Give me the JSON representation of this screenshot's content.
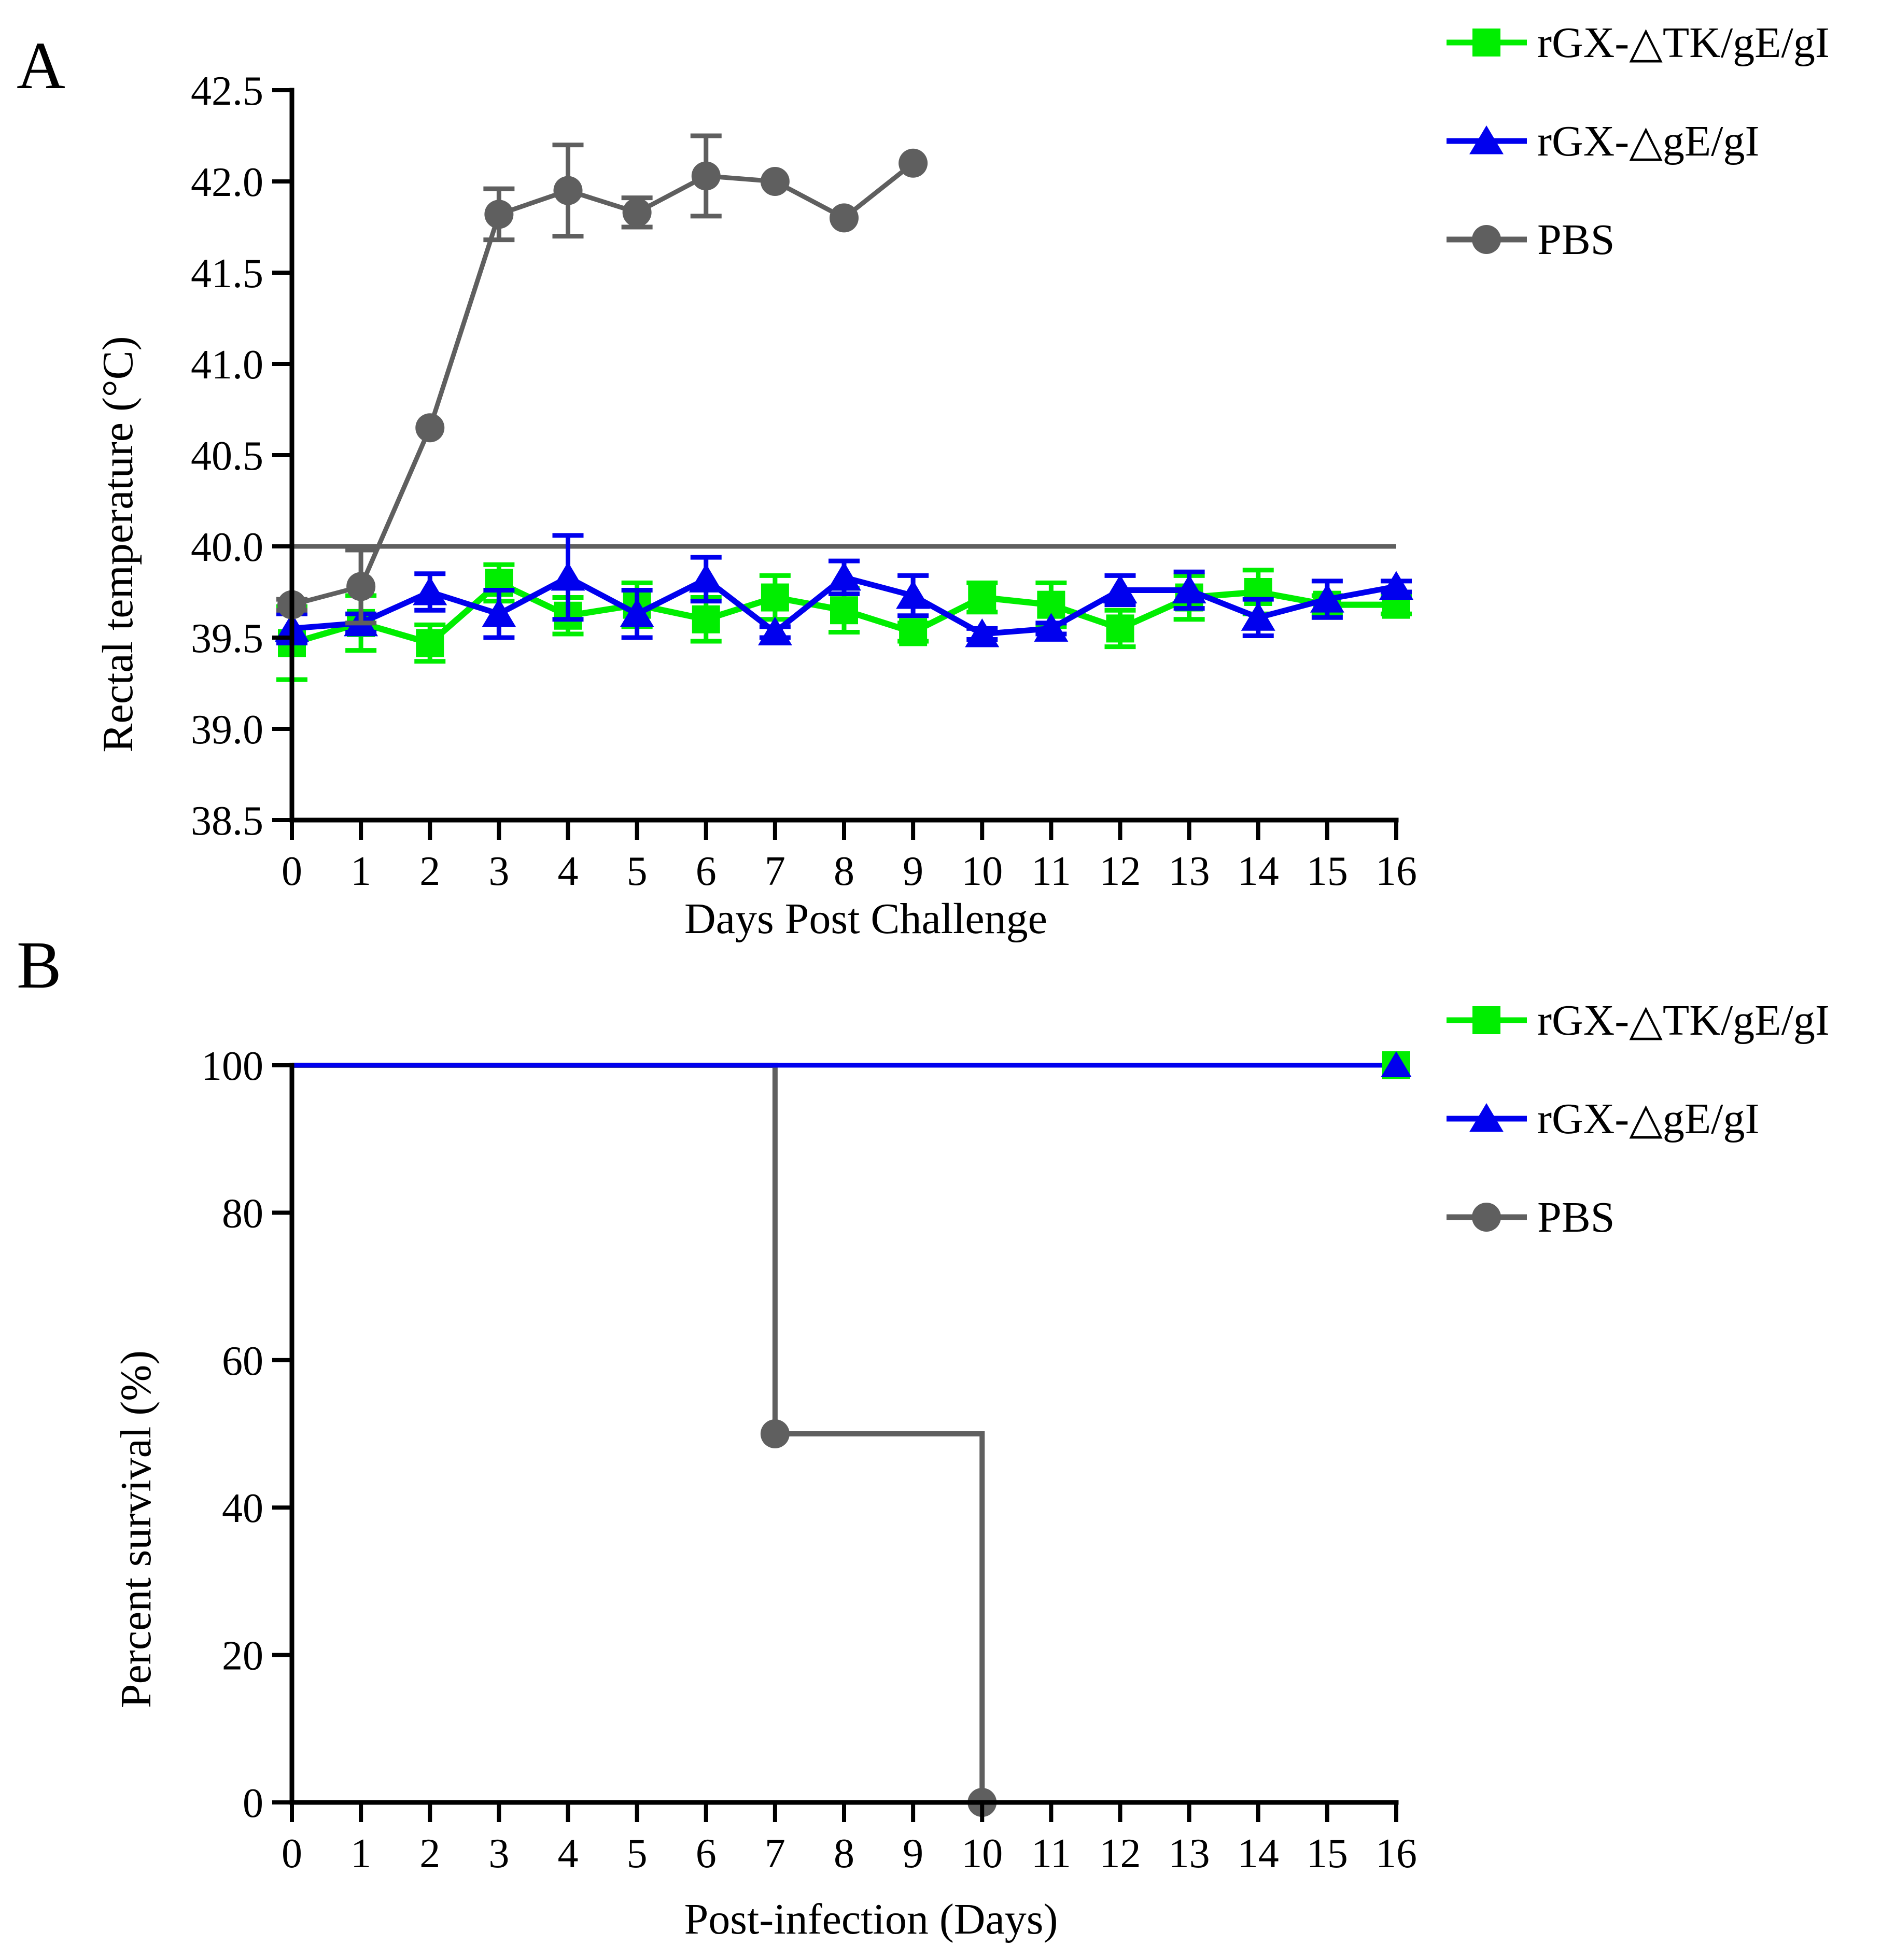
{
  "chart_data": [
    {
      "type": "line",
      "panel_label": "A",
      "xlabel": "Days Post Challenge",
      "ylabel": "Rectal temperature (°C)",
      "xlim": [
        0,
        16
      ],
      "ylim": [
        38.5,
        42.5
      ],
      "x_ticks": [
        "0",
        "1",
        "2",
        "3",
        "4",
        "5",
        "6",
        "7",
        "8",
        "9",
        "10",
        "11",
        "12",
        "13",
        "14",
        "15",
        "16"
      ],
      "y_ticks": [
        "38.5",
        "39.0",
        "39.5",
        "40.0",
        "40.5",
        "41.0",
        "41.5",
        "42.0",
        "42.5"
      ],
      "threshold": 40.0,
      "series": [
        {
          "name": "rGX-△TK/gE/gI",
          "color": "#00ee00",
          "marker": "square",
          "x": [
            0,
            1,
            2,
            3,
            4,
            5,
            6,
            7,
            8,
            9,
            10,
            11,
            12,
            13,
            14,
            15,
            16
          ],
          "values": [
            39.47,
            39.58,
            39.47,
            39.8,
            39.62,
            39.68,
            39.6,
            39.72,
            39.65,
            39.53,
            39.72,
            39.68,
            39.55,
            39.72,
            39.75,
            39.68,
            39.68
          ],
          "errors": [
            0.2,
            0.15,
            0.1,
            0.1,
            0.1,
            0.12,
            0.12,
            0.12,
            0.12,
            0.05,
            0.08,
            0.12,
            0.1,
            0.12,
            0.12,
            0.05,
            0.05
          ]
        },
        {
          "name": "rGX-△gE/gI",
          "color": "#0000ee",
          "marker": "triangle",
          "x": [
            0,
            1,
            2,
            3,
            4,
            5,
            6,
            7,
            8,
            9,
            10,
            11,
            12,
            13,
            14,
            15,
            16
          ],
          "values": [
            39.55,
            39.58,
            39.75,
            39.63,
            39.83,
            39.63,
            39.82,
            39.53,
            39.83,
            39.73,
            39.52,
            39.55,
            39.76,
            39.76,
            39.61,
            39.71,
            39.78
          ],
          "errors": [
            0.08,
            0.05,
            0.1,
            0.13,
            0.23,
            0.13,
            0.12,
            0.03,
            0.09,
            0.11,
            0.03,
            0.03,
            0.08,
            0.1,
            0.1,
            0.1,
            0.03
          ]
        },
        {
          "name": "PBS",
          "color": "#5f5f5f",
          "marker": "circle",
          "x": [
            0,
            1,
            2,
            3,
            4,
            5,
            6,
            7,
            8,
            9
          ],
          "values": [
            39.68,
            39.78,
            40.65,
            41.82,
            41.95,
            41.83,
            42.03,
            42.0,
            41.8,
            42.1
          ],
          "errors": [
            0.03,
            0.2,
            0.0,
            0.14,
            0.25,
            0.08,
            0.22,
            0.0,
            0.0,
            0.0
          ]
        }
      ]
    },
    {
      "type": "line",
      "panel_label": "B",
      "xlabel": "Post-infection (Days)",
      "ylabel": "Percent survival (%)",
      "xlim": [
        0,
        16
      ],
      "ylim": [
        0,
        100
      ],
      "x_ticks": [
        "0",
        "1",
        "2",
        "3",
        "4",
        "5",
        "6",
        "7",
        "8",
        "9",
        "10",
        "11",
        "12",
        "13",
        "14",
        "15",
        "16"
      ],
      "y_ticks": [
        "0",
        "20",
        "40",
        "60",
        "80",
        "100"
      ],
      "series": [
        {
          "name": "rGX-△TK/gE/gI",
          "color": "#00ee00",
          "marker": "square",
          "step": [
            [
              0,
              100
            ],
            [
              16,
              100
            ]
          ],
          "points": [
            [
              16,
              100
            ]
          ]
        },
        {
          "name": "rGX-△gE/gI",
          "color": "#0000ee",
          "marker": "triangle",
          "step": [
            [
              0,
              100
            ],
            [
              16,
              100
            ]
          ],
          "points": [
            [
              16,
              100
            ]
          ]
        },
        {
          "name": "PBS",
          "color": "#5f5f5f",
          "marker": "circle",
          "step": [
            [
              0,
              100
            ],
            [
              7,
              100
            ],
            [
              7,
              50
            ],
            [
              10,
              50
            ],
            [
              10,
              0
            ]
          ],
          "points": [
            [
              7,
              50
            ],
            [
              10,
              0
            ]
          ]
        }
      ]
    }
  ],
  "legend": [
    {
      "label": "rGX-△TK/gE/gI",
      "color": "#00ee00",
      "marker": "square"
    },
    {
      "label": "rGX-△gE/gI",
      "color": "#0000ee",
      "marker": "triangle"
    },
    {
      "label": "PBS",
      "color": "#5f5f5f",
      "marker": "circle"
    }
  ]
}
